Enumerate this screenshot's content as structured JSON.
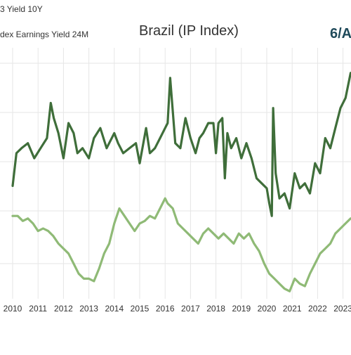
{
  "chart_data": {
    "type": "line",
    "title": "Brazil (IP Index)",
    "corner_text": "6/A",
    "legend": {
      "placement": "top-left",
      "entries": [
        "3 Yield 10Y",
        "dex Earnings Yield 24M"
      ]
    },
    "xlabel": "",
    "ylabel": "",
    "x_tick_labels": [
      "2010",
      "2011",
      "2012",
      "2013",
      "2014",
      "2015",
      "2016",
      "2017",
      "2018",
      "2019",
      "2020",
      "2021",
      "2022",
      "2023"
    ],
    "xlim": [
      2009.9,
      2023.4
    ],
    "ylim": [
      0,
      100
    ],
    "grid": true,
    "y_axis_values_shown": false,
    "colors": {
      "series_dark": "#3f6e3a",
      "series_light": "#8fba76",
      "grid": "#e6e6e6",
      "text": "#333333"
    },
    "series": [
      {
        "name": "3 Yield 10Y",
        "color": "#3f6e3a",
        "x": [
          2010.0,
          2010.15,
          2010.35,
          2010.6,
          2010.85,
          2011.1,
          2011.35,
          2011.5,
          2011.62,
          2011.8,
          2012.0,
          2012.2,
          2012.4,
          2012.55,
          2012.75,
          2013.0,
          2013.2,
          2013.45,
          2013.7,
          2014.0,
          2014.15,
          2014.35,
          2014.6,
          2014.85,
          2015.0,
          2015.25,
          2015.4,
          2015.6,
          2015.8,
          2016.0,
          2016.1,
          2016.2,
          2016.4,
          2016.6,
          2016.8,
          2017.0,
          2017.2,
          2017.35,
          2017.5,
          2017.7,
          2017.9,
          2018.0,
          2018.1,
          2018.25,
          2018.35,
          2018.45,
          2018.6,
          2018.8,
          2019.0,
          2019.2,
          2019.4,
          2019.6,
          2019.8,
          2020.0,
          2020.1,
          2020.2,
          2020.25,
          2020.35,
          2020.5,
          2020.7,
          2020.9,
          2021.1,
          2021.3,
          2021.5,
          2021.7,
          2021.9,
          2022.1,
          2022.3,
          2022.5,
          2022.7,
          2022.9,
          2023.1,
          2023.3
        ],
        "y": [
          45,
          58,
          60,
          62,
          56,
          60,
          64,
          78,
          72,
          66,
          56,
          70,
          66,
          58,
          60,
          56,
          64,
          68,
          60,
          66,
          62,
          58,
          60,
          62,
          54,
          68,
          58,
          60,
          64,
          68,
          70,
          88,
          62,
          60,
          72,
          64,
          58,
          64,
          66,
          70,
          70,
          58,
          70,
          72,
          48,
          66,
          60,
          64,
          56,
          62,
          56,
          48,
          46,
          44,
          38,
          33,
          76,
          50,
          40,
          42,
          36,
          50,
          44,
          46,
          42,
          54,
          50,
          64,
          60,
          68,
          76,
          80,
          90
        ]
      },
      {
        "name": "dex Earnings Yield 24M",
        "color": "#8fba76",
        "x": [
          2010.0,
          2010.2,
          2010.4,
          2010.6,
          2010.8,
          2011.0,
          2011.2,
          2011.4,
          2011.6,
          2011.8,
          2012.0,
          2012.2,
          2012.4,
          2012.6,
          2012.8,
          2013.0,
          2013.2,
          2013.4,
          2013.6,
          2013.8,
          2014.0,
          2014.2,
          2014.4,
          2014.6,
          2014.8,
          2015.0,
          2015.2,
          2015.4,
          2015.6,
          2015.8,
          2016.0,
          2016.1,
          2016.3,
          2016.5,
          2016.7,
          2016.9,
          2017.1,
          2017.3,
          2017.5,
          2017.7,
          2017.9,
          2018.1,
          2018.3,
          2018.5,
          2018.7,
          2018.9,
          2019.1,
          2019.3,
          2019.5,
          2019.7,
          2019.9,
          2020.1,
          2020.3,
          2020.5,
          2020.7,
          2020.9,
          2021.1,
          2021.3,
          2021.5,
          2021.7,
          2021.9,
          2022.1,
          2022.3,
          2022.5,
          2022.7,
          2022.9,
          2023.1,
          2023.3
        ],
        "y": [
          33,
          33,
          31,
          32,
          30,
          27,
          28,
          27,
          25,
          22,
          20,
          18,
          14,
          10,
          8,
          8,
          7,
          12,
          18,
          22,
          30,
          36,
          33,
          30,
          27,
          30,
          31,
          33,
          32,
          36,
          40,
          38,
          36,
          30,
          28,
          26,
          24,
          22,
          26,
          28,
          26,
          24,
          26,
          24,
          22,
          26,
          24,
          26,
          22,
          19,
          14,
          10,
          8,
          6,
          4,
          3,
          8,
          6,
          5,
          10,
          14,
          18,
          20,
          22,
          26,
          28,
          30,
          32
        ]
      }
    ]
  }
}
